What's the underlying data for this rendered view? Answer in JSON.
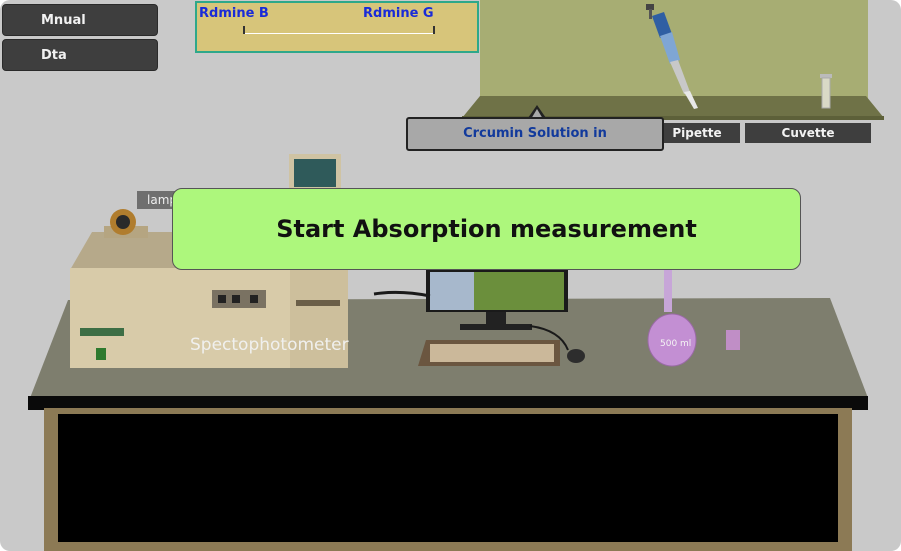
{
  "sidebar": {
    "manual_label": "Mnual",
    "data_label": "Dta"
  },
  "slider": {
    "left_label": "Rdmine B",
    "right_label": "Rdmine G"
  },
  "tools": {
    "pipette_label": "Pipette",
    "cuvette_label": "Cuvette"
  },
  "tooltip": {
    "text": "Crcumin Solution in"
  },
  "banner": {
    "text": "Start Absorption measurement"
  },
  "lab": {
    "lamp_label": "lamp",
    "spectro_label": "Spectophotometer",
    "flask_label": "500 ml"
  },
  "colors": {
    "banner_bg": "#adf77c",
    "slider_label": "#1a2bd8",
    "tooltip_text": "#123a9c",
    "table_top": "#7e7e6e"
  }
}
